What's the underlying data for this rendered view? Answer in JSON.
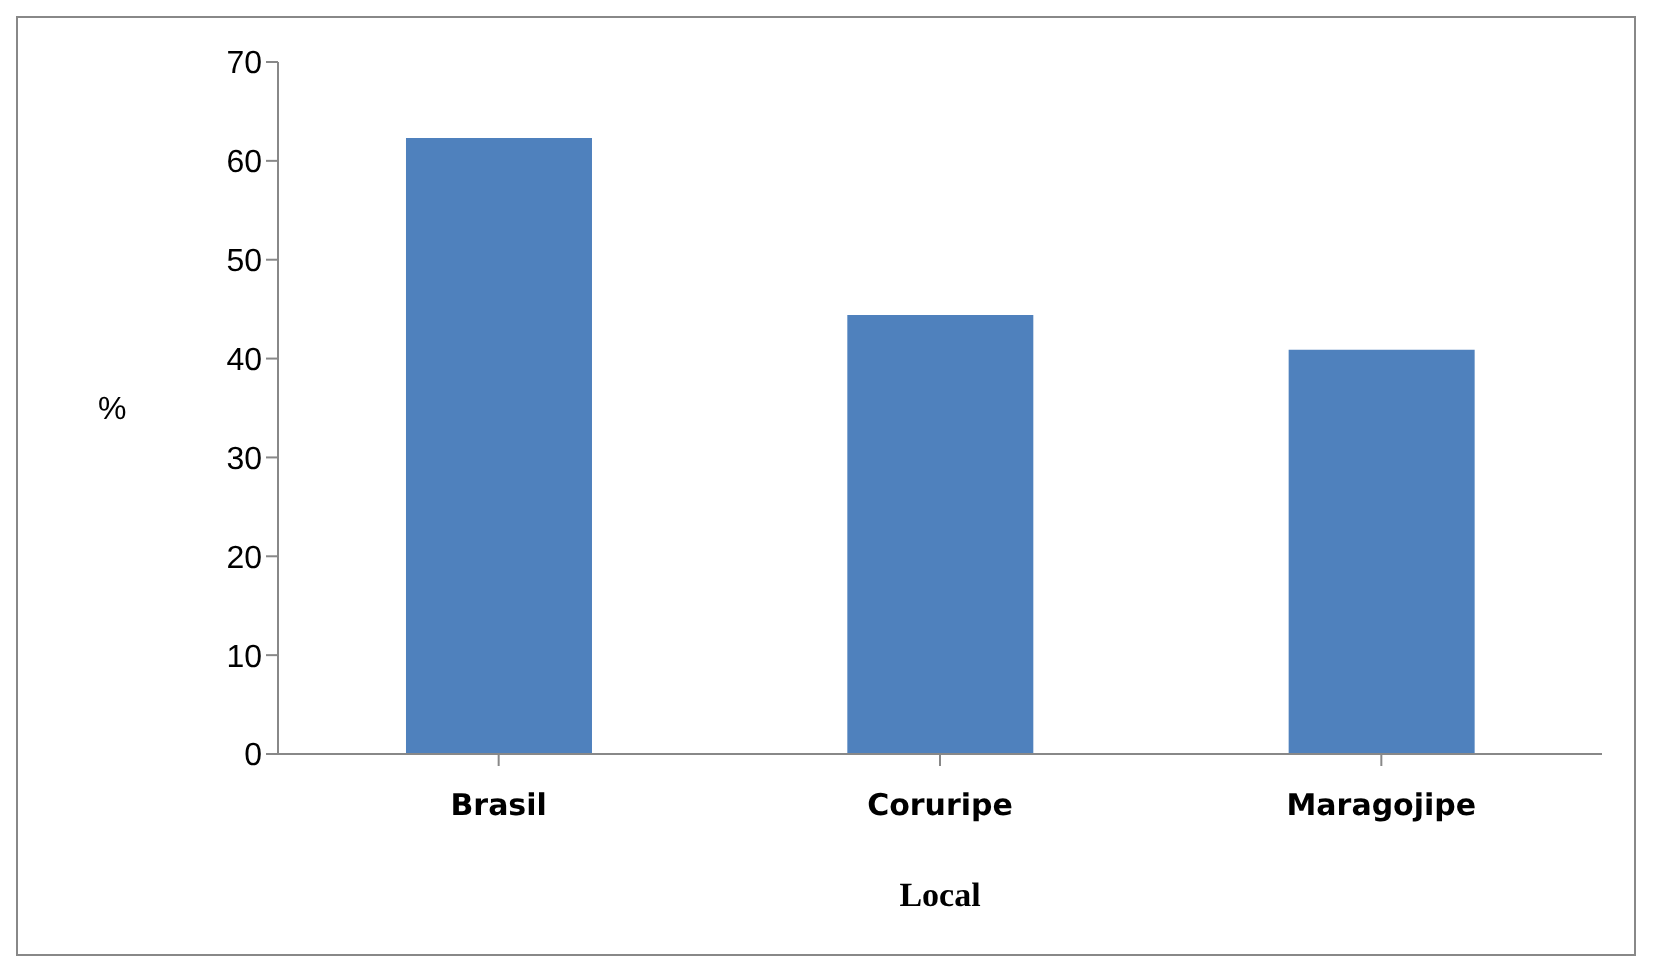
{
  "chart_data": {
    "type": "bar",
    "xlabel": "Local",
    "ylabel": "%",
    "categories": [
      "Brasil",
      "Coruripe",
      "Maragojipe"
    ],
    "values": [
      62.3,
      44.4,
      40.9
    ],
    "color": "#4f81bd",
    "ylim": [
      0,
      70
    ],
    "yticks": [
      0,
      10,
      20,
      30,
      40,
      50,
      60,
      70
    ],
    "grid": false,
    "legend": false
  }
}
